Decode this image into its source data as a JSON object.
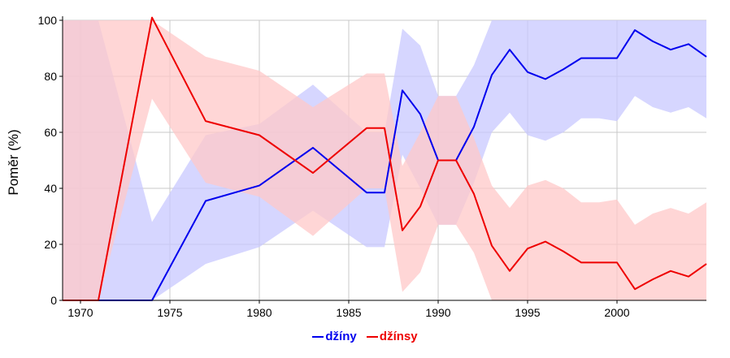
{
  "chart_data": {
    "type": "line",
    "title": "",
    "xlabel": "",
    "ylabel": "Poměr (%)",
    "xlim": [
      1969,
      2005
    ],
    "ylim": [
      0,
      100
    ],
    "xticks": [
      1970,
      1975,
      1980,
      1985,
      1990,
      1995,
      2000
    ],
    "yticks": [
      0,
      20,
      40,
      60,
      80,
      100
    ],
    "grid": true,
    "legend_position": "bottom-center",
    "series": [
      {
        "name": "džíny",
        "color": "#0000ee",
        "band_color": "#c8c8ff",
        "x": [
          1969,
          1971,
          1974,
          1977,
          1980,
          1983,
          1986,
          1987,
          1988,
          1989,
          1990,
          1991,
          1992,
          1993,
          1994,
          1995,
          1996,
          1997,
          1998,
          1999,
          2000,
          2001,
          2002,
          2003,
          2004,
          2005
        ],
        "y": [
          0,
          0,
          0,
          35.5,
          41,
          54.5,
          38.5,
          38.5,
          75,
          66.5,
          50,
          50,
          62,
          80.5,
          89.5,
          81.5,
          79,
          82.5,
          86.5,
          86.5,
          86.5,
          96.5,
          92.5,
          89.5,
          91.5,
          87
        ],
        "lower": [
          0,
          0,
          0,
          13,
          19,
          32,
          19,
          19,
          52,
          40,
          27,
          27,
          42,
          60,
          67,
          59,
          57,
          60,
          65,
          65,
          64,
          73,
          69,
          67,
          69,
          65
        ],
        "upper": [
          100,
          100,
          28,
          59,
          63,
          77,
          60,
          60,
          97,
          91,
          73,
          73,
          84,
          101,
          101,
          101,
          101,
          101,
          101,
          101,
          101,
          101,
          101,
          101,
          101,
          101
        ]
      },
      {
        "name": "džínsy",
        "color": "#ee0000",
        "band_color": "#ffc8c8",
        "x": [
          1969,
          1971,
          1974,
          1977,
          1980,
          1983,
          1986,
          1987,
          1988,
          1989,
          1990,
          1991,
          1992,
          1993,
          1994,
          1995,
          1996,
          1997,
          1998,
          1999,
          2000,
          2001,
          2002,
          2003,
          2004,
          2005
        ],
        "y": [
          0,
          0,
          101,
          64,
          59,
          45.5,
          61.5,
          61.5,
          25,
          33.5,
          50,
          50,
          38,
          19.5,
          10.5,
          18.5,
          21,
          17.5,
          13.5,
          13.5,
          13.5,
          4,
          7.5,
          10.5,
          8.5,
          13
        ],
        "lower": [
          0,
          0,
          72,
          42,
          37,
          23,
          40,
          40,
          3,
          10,
          27,
          27,
          17,
          0,
          0,
          0,
          0,
          0,
          0,
          0,
          0,
          0,
          0,
          0,
          0,
          0
        ],
        "upper": [
          100,
          100,
          101,
          87,
          82,
          69,
          81,
          81,
          48,
          60,
          73,
          73,
          58,
          41,
          33,
          41,
          43,
          40,
          35,
          35,
          36,
          27,
          31,
          33,
          31,
          35
        ]
      }
    ]
  },
  "legend": {
    "items": [
      {
        "label": "džíny",
        "color": "#0000ee"
      },
      {
        "label": "džínsy",
        "color": "#ee0000"
      }
    ]
  }
}
